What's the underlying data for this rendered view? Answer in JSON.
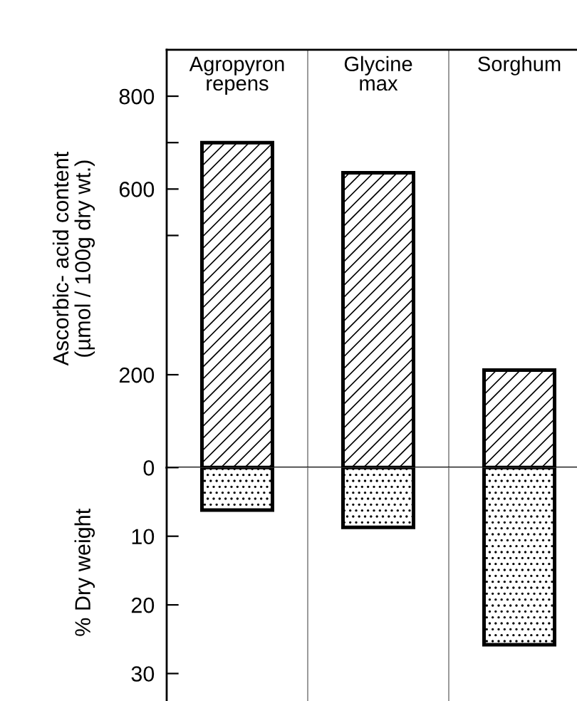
{
  "chart_data": [
    {
      "type": "bar",
      "categories": [
        "Agropyron\nrepens",
        "Glycine\nmax",
        "Sorghum"
      ],
      "ylabel": "Ascorbic- acid content\n(µmol / 100g dry wt.)",
      "series": [
        {
          "color": "#000000",
          "values": [
            700,
            635,
            210
          ]
        }
      ],
      "ylim": [
        0,
        900
      ],
      "yticks": [
        0,
        200,
        {
          "value": 500,
          "label": null
        },
        600,
        {
          "value": 700,
          "label": null
        },
        800
      ],
      "grid": "x",
      "legend": false
    },
    {
      "type": "bar",
      "categories": [
        null,
        null,
        null
      ],
      "ylabel": "% Dry weight",
      "series": [
        {
          "color": "#000000",
          "values": [
            6.2,
            8.7,
            25.8
          ]
        }
      ],
      "ylim": [
        34,
        0
      ],
      "yticks": [
        {
          "value": 0,
          "label": null
        },
        10,
        20,
        30
      ],
      "grid": "x",
      "legend": false,
      "tick_labels": "y"
    }
  ]
}
